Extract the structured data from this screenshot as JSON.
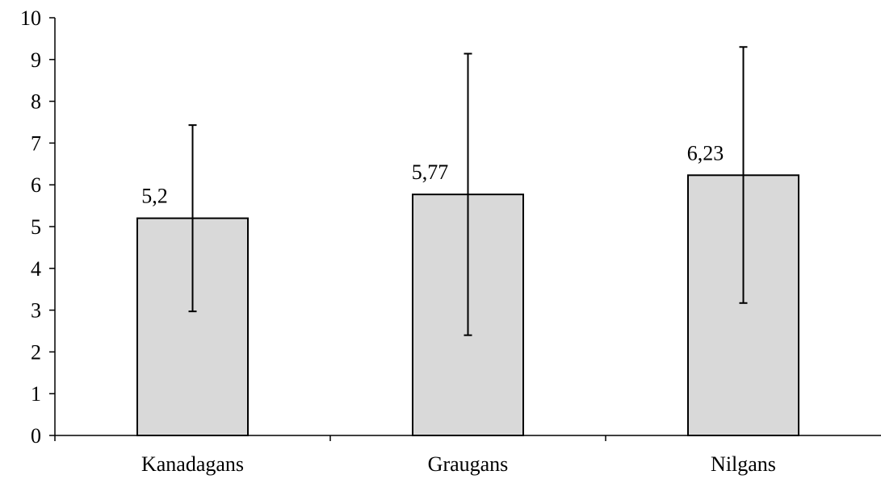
{
  "chart_data": {
    "type": "bar",
    "title": "",
    "xlabel": "",
    "ylabel": "",
    "categories": [
      "Kanadagans",
      "Graugans",
      "Nilgans"
    ],
    "values": [
      5.2,
      5.77,
      6.23
    ],
    "data_labels": [
      "5,2",
      "5,77",
      "6,23"
    ],
    "error_low": [
      2.97,
      2.4,
      3.17
    ],
    "error_high": [
      7.43,
      9.14,
      9.3
    ],
    "ylim": [
      0,
      10
    ],
    "yticks": [
      0,
      1,
      2,
      3,
      4,
      5,
      6,
      7,
      8,
      9,
      10
    ],
    "ytick_labels": [
      "0",
      "1",
      "2",
      "3",
      "4",
      "5",
      "6",
      "7",
      "8",
      "9",
      "10"
    ],
    "grid": false,
    "legend": "none",
    "bar_color": "#d9d9d9",
    "edge_color": "#000000"
  }
}
